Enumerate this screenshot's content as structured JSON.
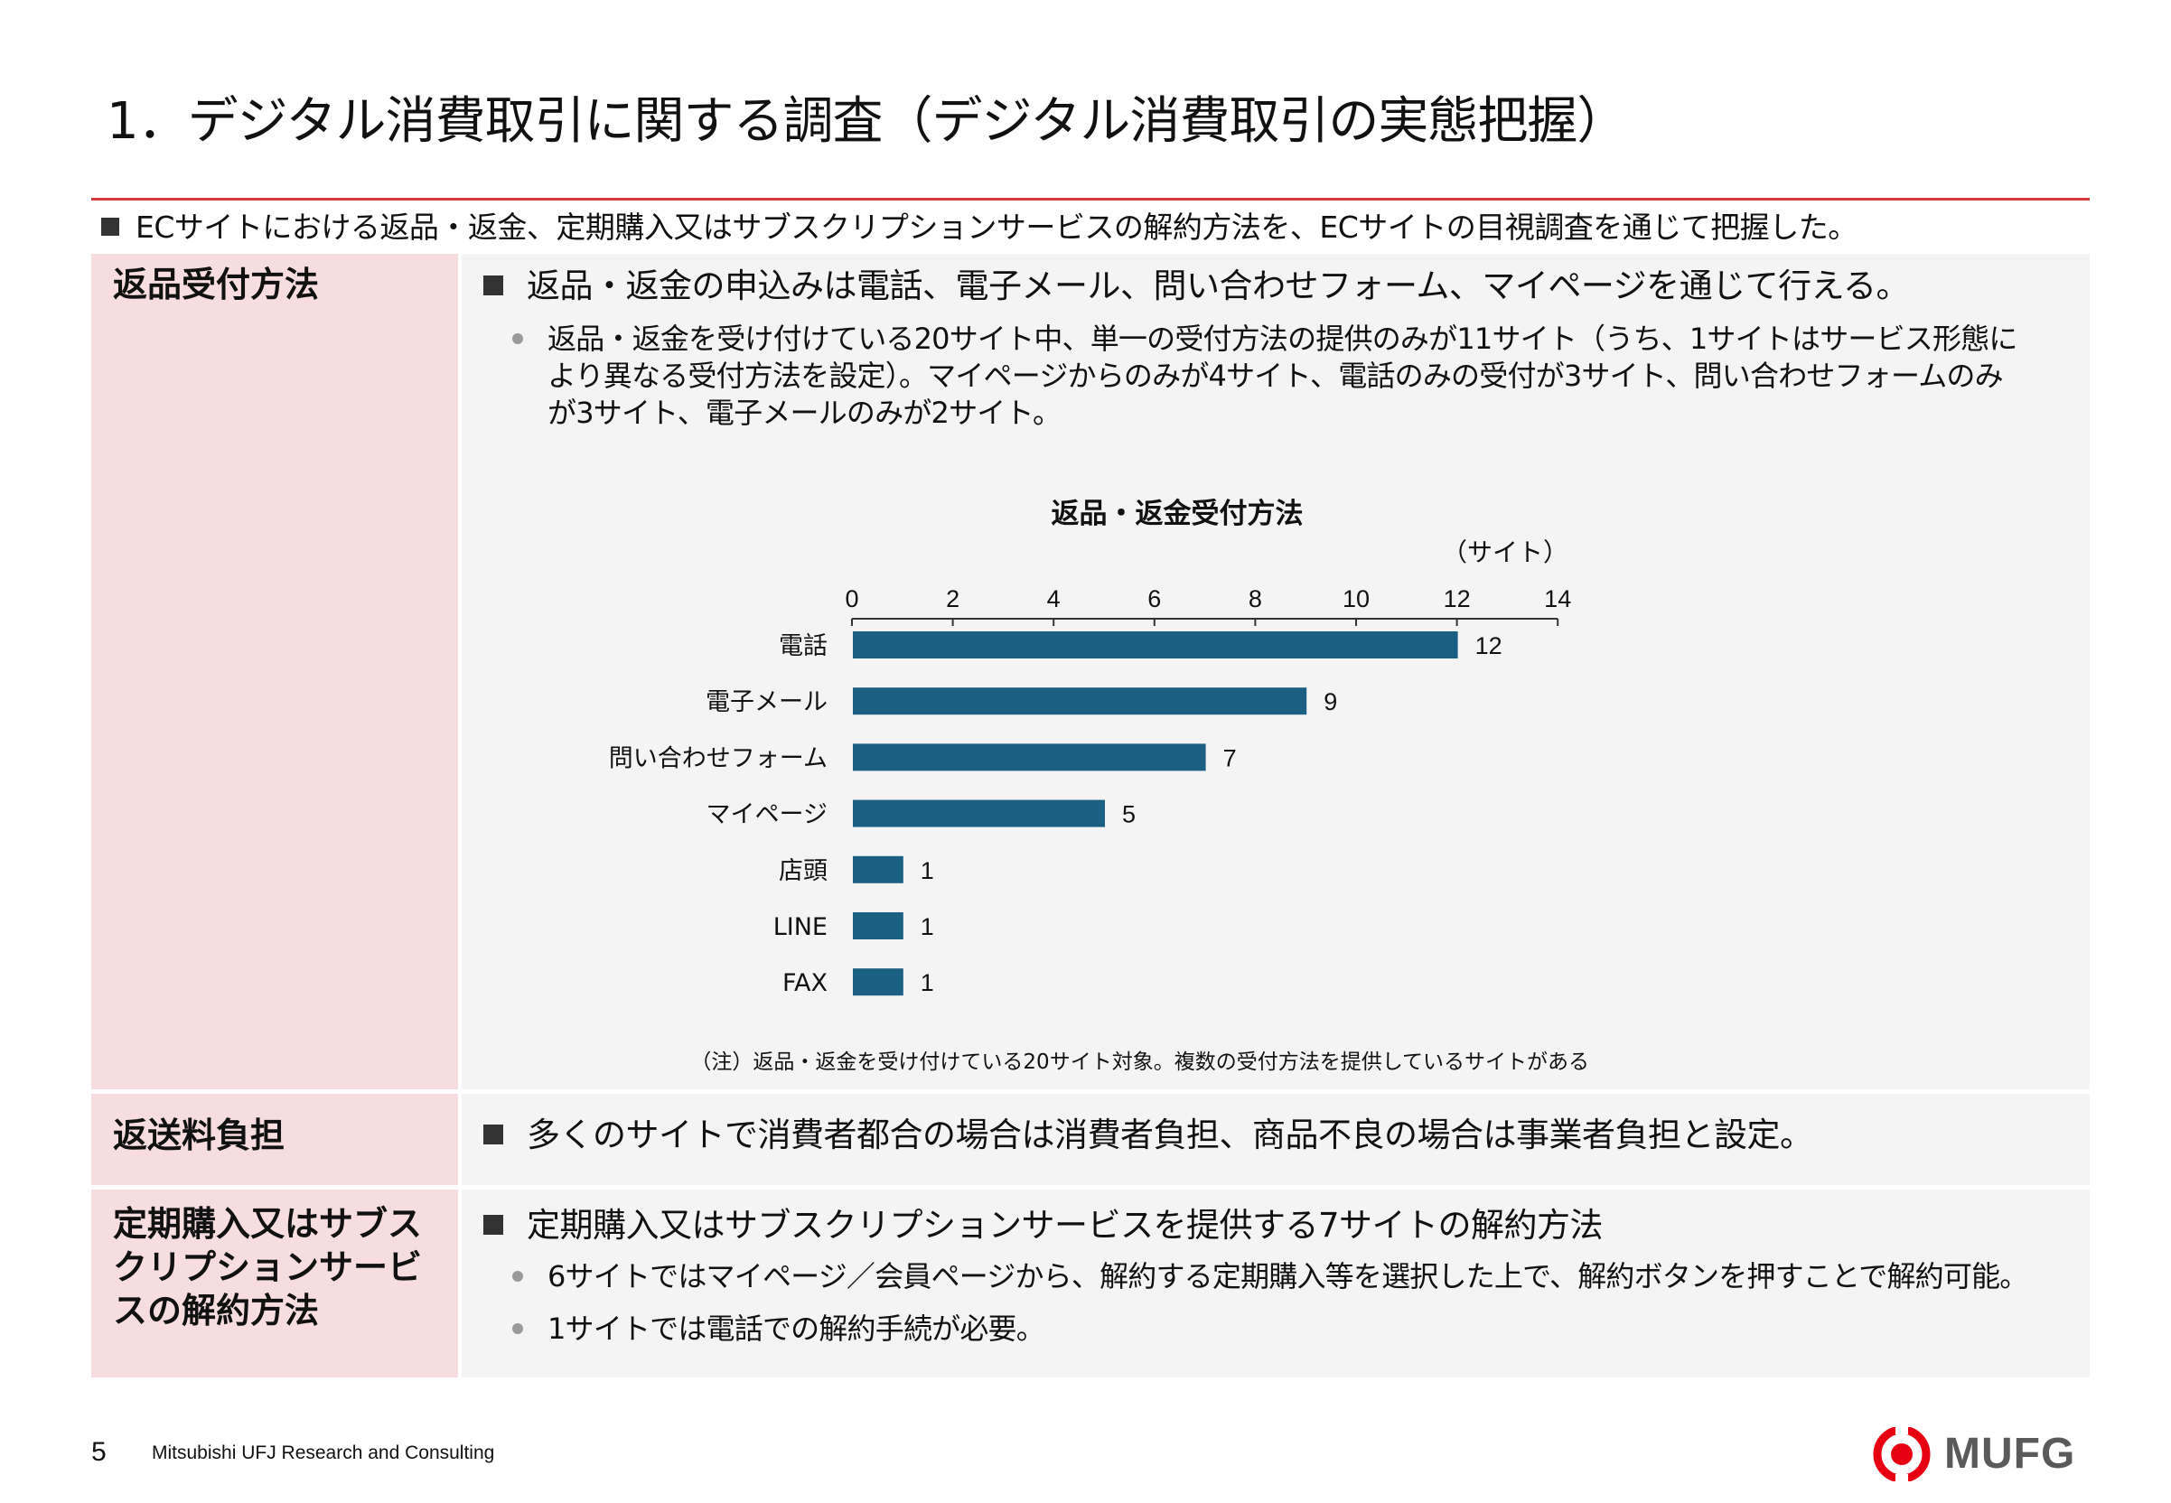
{
  "title": "1．デジタル消費取引に関する調査（デジタル消費取引の実態把握）",
  "intro": "ECサイトにおける返品・返金、定期購入又はサブスクリプションサービスの解約方法を、ECサイトの目視調査を通じて把握した。",
  "section1": {
    "label": "返品受付方法",
    "point": "返品・返金の申込みは電話、電子メール、問い合わせフォーム、マイページを通じて行える。",
    "bullet": "返品・返金を受け付けている20サイト中、単一の受付方法の提供のみが11サイト（うち、1サイトはサービス形態により異なる受付方法を設定）。マイページからのみが4サイト、電話のみの受付が3サイト、問い合わせフォームのみが3サイト、電子メールのみが2サイト。",
    "note": "（注）返品・返金を受け付けている20サイト対象。複数の受付方法を提供しているサイトがある"
  },
  "section2": {
    "label": "返送料負担",
    "point": "多くのサイトで消費者都合の場合は消費者負担、商品不良の場合は事業者負担と設定。"
  },
  "section3": {
    "label": "定期購入又はサブスクリプションサービスの解約方法",
    "point": "定期購入又はサブスクリプションサービスを提供する7サイトの解約方法",
    "bullets": [
      "6サイトではマイページ／会員ページから、解約する定期購入等を選択した上で、解約ボタンを押すことで解約可能。",
      "1サイトでは電話での解約手続が必要。"
    ]
  },
  "chart_data": {
    "type": "bar",
    "orientation": "horizontal",
    "title": "返品・返金受付方法",
    "unit": "（サイト）",
    "categories": [
      "電話",
      "電子メール",
      "問い合わせフォーム",
      "マイページ",
      "店頭",
      "LINE",
      "FAX"
    ],
    "values": [
      12,
      9,
      7,
      5,
      1,
      1,
      1
    ],
    "xlim": [
      0,
      14
    ],
    "ticks": [
      0,
      2,
      4,
      6,
      8,
      10,
      12,
      14
    ],
    "axis_position": "top",
    "bar_color": "#1b5f82",
    "grid": false
  },
  "footer": {
    "page_number": "5",
    "company": "Mitsubishi UFJ Research and Consulting",
    "logo_text": "MUFG",
    "logo_color": "#e60012"
  }
}
